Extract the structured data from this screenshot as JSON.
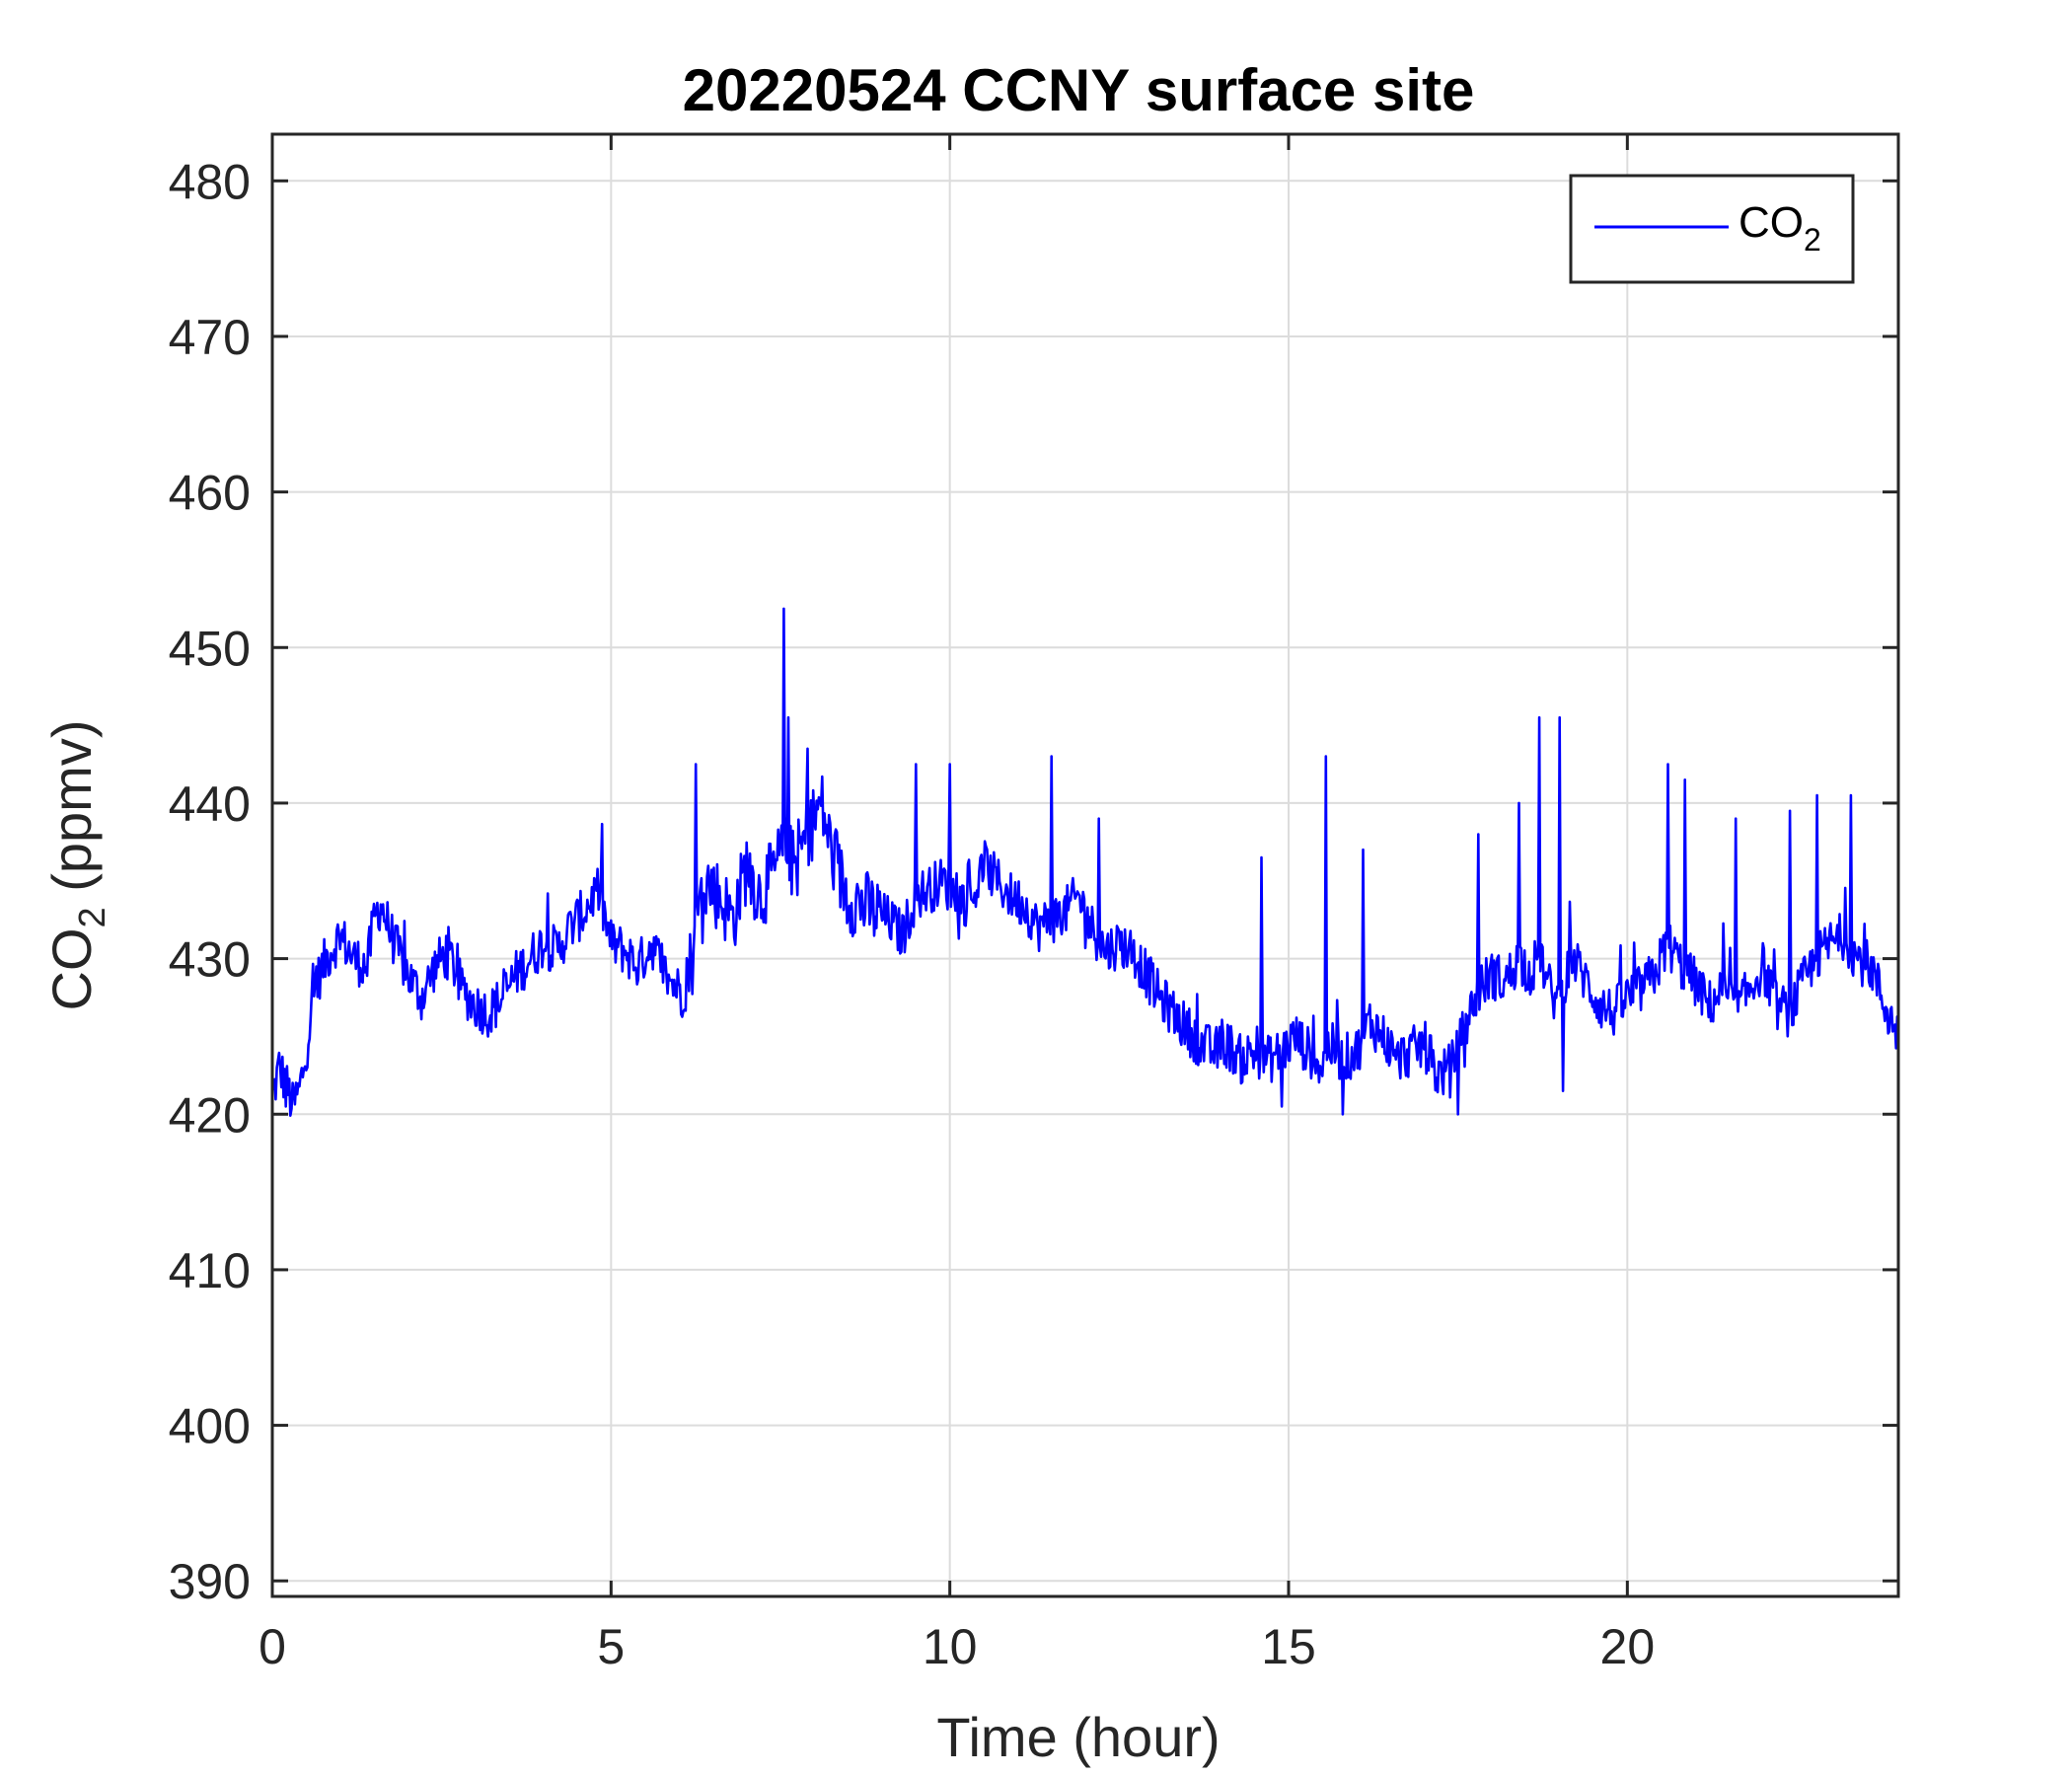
{
  "chart_data": {
    "type": "line",
    "title": "20220524 CCNY surface site",
    "xlabel": "Time (hour)",
    "ylabel": {
      "main": "CO",
      "sub": "2",
      "rest": " (ppmv)"
    },
    "xlim": [
      0,
      24
    ],
    "ylim": [
      389,
      483
    ],
    "xticks": [
      0,
      5,
      10,
      15,
      20
    ],
    "yticks": [
      390,
      400,
      410,
      420,
      430,
      440,
      450,
      460,
      470,
      480
    ],
    "grid": true,
    "legend_position": "top-right",
    "series": [
      {
        "name": {
          "main": "CO",
          "sub": "2"
        },
        "color": "#0000ff",
        "x": [
          0,
          0.1,
          0.2,
          0.3,
          0.4,
          0.5,
          0.6,
          0.7,
          0.8,
          1.0,
          1.2,
          1.4,
          1.5,
          1.6,
          1.8,
          2.0,
          2.2,
          2.4,
          2.6,
          2.8,
          3.0,
          3.2,
          3.4,
          3.6,
          3.8,
          4.0,
          4.2,
          4.4,
          4.6,
          4.8,
          5.0,
          5.2,
          5.4,
          5.6,
          5.8,
          6.0,
          6.2,
          6.3,
          6.4,
          6.6,
          6.8,
          7.0,
          7.2,
          7.4,
          7.55,
          7.7,
          7.9,
          8.1,
          8.3,
          8.5,
          8.7,
          8.9,
          9.1,
          9.3,
          9.5,
          9.7,
          9.9,
          10.1,
          10.3,
          10.5,
          10.7,
          10.9,
          11.1,
          11.3,
          11.5,
          11.7,
          11.9,
          12.1,
          12.3,
          12.5,
          12.7,
          12.9,
          13.1,
          13.3,
          13.5,
          13.7,
          13.9,
          14.1,
          14.3,
          14.5,
          14.7,
          14.9,
          15.1,
          15.3,
          15.5,
          15.6,
          15.8,
          16.0,
          16.2,
          16.4,
          16.6,
          16.8,
          17.0,
          17.2,
          17.4,
          17.6,
          17.8,
          18.0,
          18.2,
          18.4,
          18.6,
          18.7,
          18.8,
          19.0,
          19.1,
          19.2,
          19.4,
          19.6,
          19.8,
          20.0,
          20.2,
          20.4,
          20.6,
          20.8,
          21.0,
          21.2,
          21.4,
          21.6,
          21.8,
          22.0,
          22.2,
          22.4,
          22.6,
          22.8,
          23.0,
          23.2,
          23.4,
          23.6,
          23.8,
          24.0
        ],
        "y": [
          421,
          423,
          422,
          420.5,
          421.5,
          424,
          427.5,
          429,
          430,
          431.5,
          430,
          429.5,
          432.5,
          433.5,
          431,
          429,
          427.5,
          429.5,
          430.5,
          428,
          427,
          426.5,
          427.5,
          429,
          430,
          431,
          430.5,
          432,
          433,
          434.5,
          431,
          430.5,
          429.5,
          431,
          429,
          428,
          430,
          433,
          435,
          434,
          432.5,
          436,
          434,
          435.5,
          437,
          436,
          438,
          440,
          436,
          434,
          433.5,
          433,
          432.5,
          431.5,
          434,
          434.5,
          435,
          434,
          433.5,
          436,
          435,
          434,
          433.5,
          432,
          432.5,
          433,
          434,
          432,
          430.5,
          431,
          430.5,
          429,
          427.5,
          426.5,
          425.5,
          424.5,
          424,
          424.5,
          423.5,
          424,
          423.5,
          424,
          425,
          424,
          423,
          424.5,
          423.5,
          424,
          426,
          425,
          423.5,
          424,
          424.5,
          422.5,
          423,
          425.5,
          428,
          429,
          428.5,
          430,
          429,
          431,
          428.5,
          427,
          429,
          430,
          428.5,
          427,
          426.5,
          427.5,
          428,
          429,
          431,
          429.5,
          428.5,
          427,
          428,
          426.5,
          428,
          429.5,
          427,
          426.5,
          428.5,
          430,
          431,
          431.5,
          430,
          429.5,
          427,
          425
        ],
        "spikes": [
          {
            "x": 0.65,
            "y": 429.5
          },
          {
            "x": 6.25,
            "y": 442.5
          },
          {
            "x": 7.55,
            "y": 452.5
          },
          {
            "x": 7.62,
            "y": 445.5
          },
          {
            "x": 7.9,
            "y": 443.5
          },
          {
            "x": 9.5,
            "y": 442.5
          },
          {
            "x": 10.0,
            "y": 442.5
          },
          {
            "x": 11.5,
            "y": 443
          },
          {
            "x": 14.6,
            "y": 436.5
          },
          {
            "x": 15.55,
            "y": 443
          },
          {
            "x": 17.8,
            "y": 438
          },
          {
            "x": 18.4,
            "y": 440
          },
          {
            "x": 18.7,
            "y": 445.5
          },
          {
            "x": 19.0,
            "y": 445.5
          },
          {
            "x": 20.6,
            "y": 442.5
          },
          {
            "x": 20.85,
            "y": 441.5
          },
          {
            "x": 22.4,
            "y": 439.5
          },
          {
            "x": 22.8,
            "y": 440.5
          },
          {
            "x": 23.3,
            "y": 440.5
          },
          {
            "x": 16.1,
            "y": 437
          },
          {
            "x": 21.6,
            "y": 439
          },
          {
            "x": 12.2,
            "y": 439
          }
        ],
        "dips": [
          {
            "x": 14.9,
            "y": 420.5
          },
          {
            "x": 15.8,
            "y": 420
          },
          {
            "x": 17.5,
            "y": 420
          },
          {
            "x": 19.05,
            "y": 421.5
          },
          {
            "x": 0.2,
            "y": 420.5
          }
        ]
      }
    ]
  }
}
